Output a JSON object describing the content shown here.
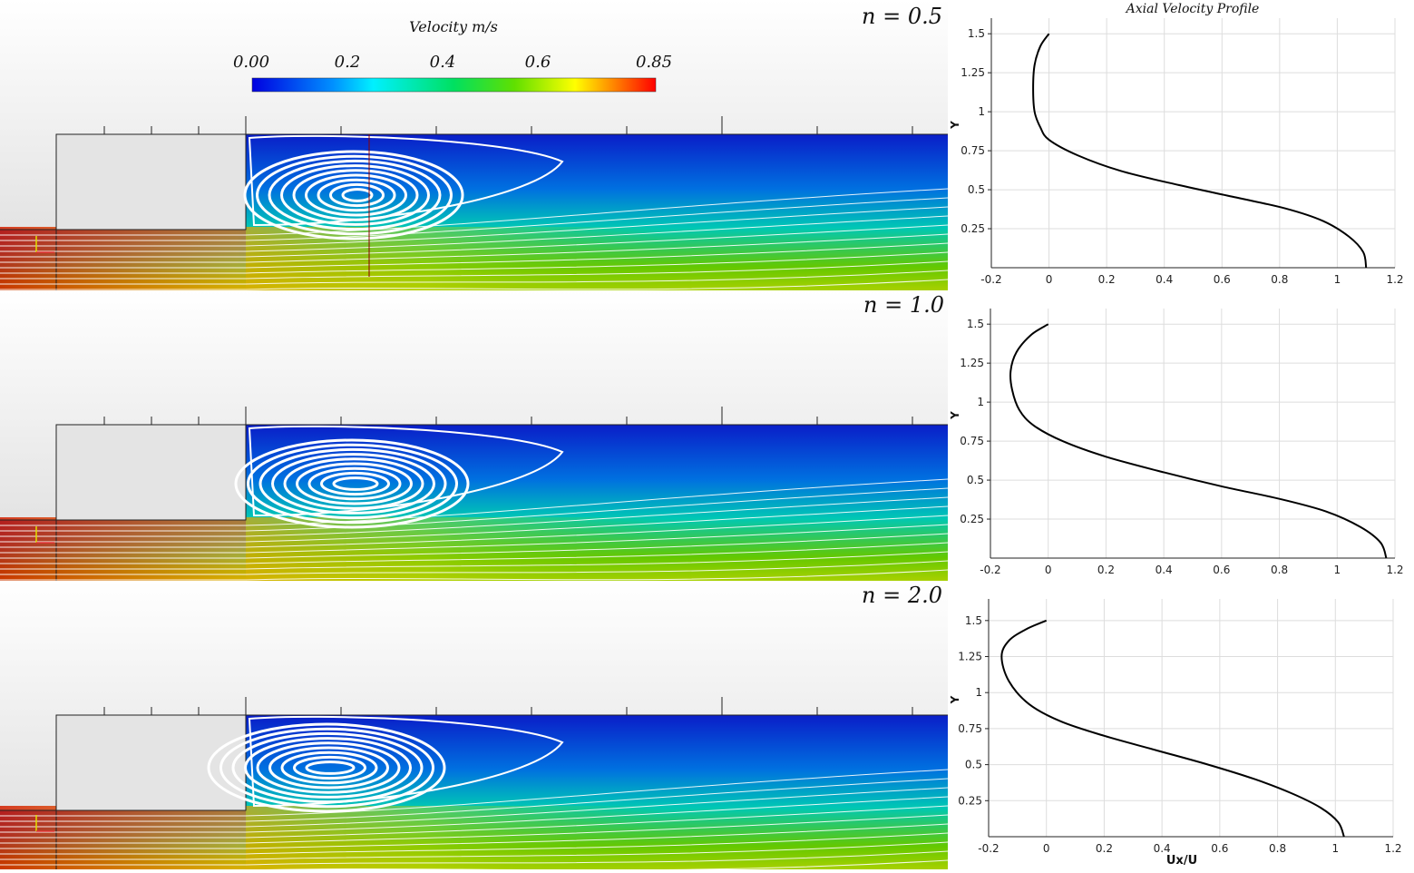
{
  "colorbar": {
    "title": "Velocity m/s",
    "ticks": [
      "0.00",
      "0.2",
      "0.4",
      "0.6",
      "0.85"
    ],
    "min": 0.0,
    "max": 0.85
  },
  "panels": [
    {
      "label": "n = 0.5"
    },
    {
      "label": "n = 1.0"
    },
    {
      "label": "n = 2.0"
    }
  ],
  "chart_title": "Axial Velocity Profile",
  "chart_data": [
    {
      "type": "line",
      "title": "Axial Velocity Profile",
      "xlabel": "",
      "ylabel": "Y",
      "xlim": [
        -0.2,
        1.2
      ],
      "ylim": [
        0,
        1.6
      ],
      "xticks": [
        "-0.2",
        "0",
        "0.2",
        "0.4",
        "0.6",
        "0.8",
        "1",
        "1.2"
      ],
      "yticks": [
        "0.25",
        "0.5",
        "0.75",
        "1",
        "1.25",
        "1.5"
      ],
      "series": [
        {
          "x": [
            1.1,
            1.09,
            1.04,
            0.95,
            0.82,
            0.65,
            0.45,
            0.25,
            0.1,
            0.0,
            -0.03,
            -0.05,
            -0.055,
            -0.05,
            -0.03,
            0.0
          ],
          "y": [
            0.0,
            0.1,
            0.2,
            0.3,
            0.38,
            0.45,
            0.53,
            0.62,
            0.72,
            0.82,
            0.9,
            1.0,
            1.15,
            1.3,
            1.42,
            1.5
          ]
        }
      ]
    },
    {
      "type": "line",
      "xlabel": "",
      "ylabel": "Y",
      "xlim": [
        -0.2,
        1.2
      ],
      "ylim": [
        0,
        1.6
      ],
      "xticks": [
        "-0.2",
        "0",
        "0.2",
        "0.4",
        "0.6",
        "0.8",
        "1",
        "1.2"
      ],
      "yticks": [
        "0.25",
        "0.5",
        "0.75",
        "1",
        "1.25",
        "1.5"
      ],
      "series": [
        {
          "x": [
            1.17,
            1.15,
            1.08,
            0.96,
            0.8,
            0.6,
            0.4,
            0.2,
            0.05,
            -0.05,
            -0.1,
            -0.125,
            -0.13,
            -0.11,
            -0.06,
            0.0
          ],
          "y": [
            0.0,
            0.1,
            0.2,
            0.3,
            0.38,
            0.46,
            0.55,
            0.65,
            0.75,
            0.85,
            0.95,
            1.08,
            1.2,
            1.32,
            1.43,
            1.5
          ]
        }
      ]
    },
    {
      "type": "line",
      "xlabel": "Ux/U",
      "ylabel": "Y",
      "xlim": [
        -0.2,
        1.2
      ],
      "ylim": [
        0,
        1.65
      ],
      "xticks": [
        "-0.2",
        "0",
        "0.2",
        "0.4",
        "0.6",
        "0.8",
        "1",
        "1.2"
      ],
      "yticks": [
        "0.25",
        "0.5",
        "0.75",
        "1",
        "1.25",
        "1.5"
      ],
      "series": [
        {
          "x": [
            1.03,
            1.01,
            0.95,
            0.85,
            0.72,
            0.56,
            0.38,
            0.2,
            0.05,
            -0.06,
            -0.13,
            -0.155,
            -0.13,
            -0.07,
            0.0
          ],
          "y": [
            0.0,
            0.1,
            0.2,
            0.3,
            0.4,
            0.5,
            0.6,
            0.7,
            0.8,
            0.92,
            1.08,
            1.25,
            1.36,
            1.44,
            1.5
          ]
        }
      ]
    }
  ],
  "colors": {
    "line": "#000000",
    "grid": "#dddddd",
    "flow_top": "#0a1ec8",
    "flow_mid": "#00c8b4",
    "flow_low": "#64c800",
    "flow_hot": "#d21e00",
    "step": "#e4e4e4"
  }
}
